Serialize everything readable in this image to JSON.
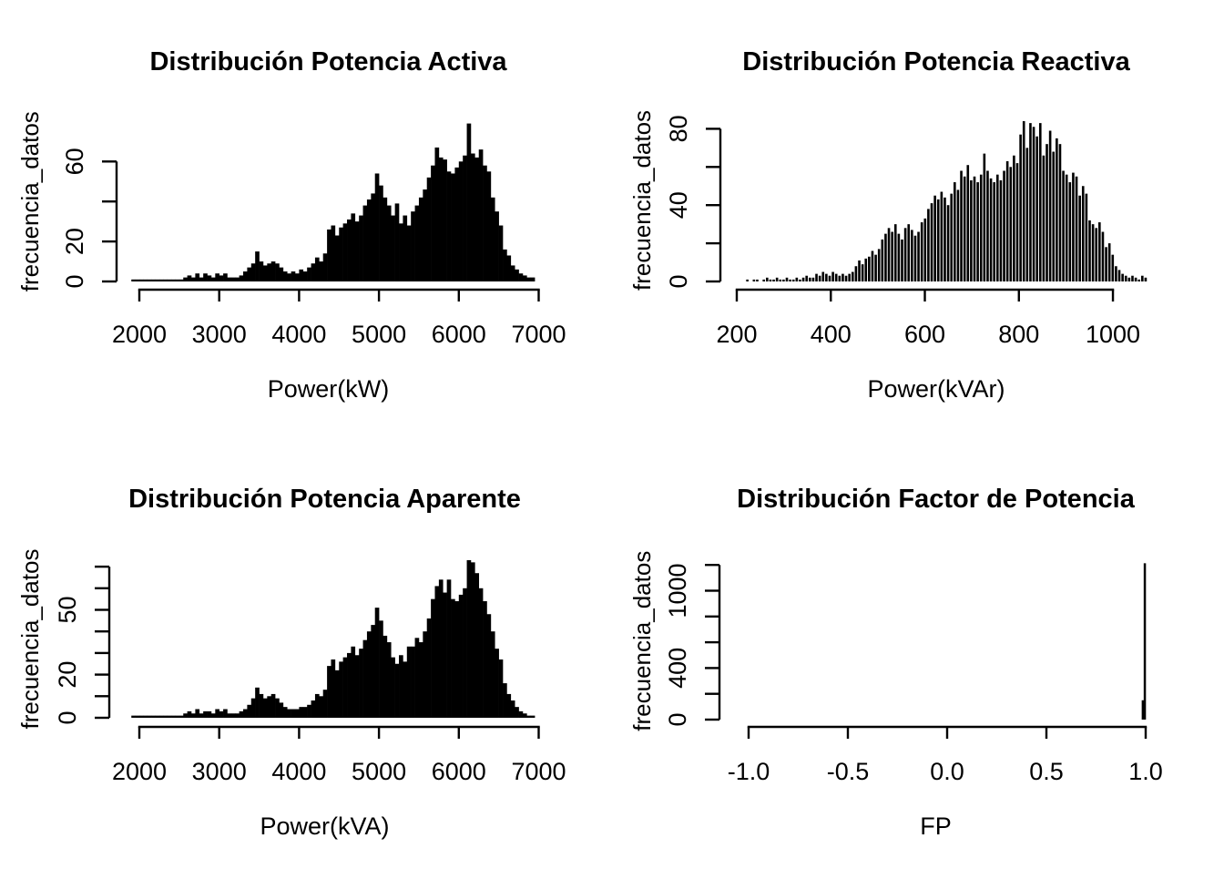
{
  "page": {
    "background_color": "#ffffff",
    "text_color": "#000000",
    "bar_color": "#000000"
  },
  "chart_data": {
    "note": "see charts[] — four base-R histograms in a 2x2 grid"
  },
  "charts": [
    {
      "id": "potencia-activa",
      "type": "bar",
      "title": "Distribución Potencia Activa",
      "xlabel": "Power(kW)",
      "ylabel": "frecuencia_datos",
      "xlim": [
        2000,
        7000
      ],
      "ylim": [
        0,
        80
      ],
      "grid": "off",
      "legend": "none",
      "x_ticks": [
        {
          "v": 2000,
          "label": "2000"
        },
        {
          "v": 3000,
          "label": "3000"
        },
        {
          "v": 4000,
          "label": "4000"
        },
        {
          "v": 5000,
          "label": "5000"
        },
        {
          "v": 6000,
          "label": "6000"
        },
        {
          "v": 7000,
          "label": "7000"
        }
      ],
      "y_ticks": [
        {
          "v": 0,
          "label": "0"
        },
        {
          "v": 20,
          "label": "20"
        },
        {
          "v": 40,
          "label": ""
        },
        {
          "v": 60,
          "label": "60"
        }
      ],
      "hist": {
        "start": 1900,
        "bin_width": 50,
        "counts": [
          1,
          1,
          1,
          1,
          1,
          1,
          1,
          1,
          1,
          1,
          1,
          1,
          1,
          2,
          3,
          2,
          4,
          2,
          4,
          3,
          2,
          4,
          3,
          4,
          2,
          2,
          2,
          3,
          5,
          7,
          9,
          15,
          10,
          8,
          9,
          10,
          9,
          7,
          5,
          4,
          5,
          4,
          6,
          5,
          7,
          9,
          12,
          10,
          14,
          26,
          28,
          23,
          27,
          29,
          31,
          34,
          30,
          33,
          38,
          41,
          44,
          54,
          48,
          42,
          38,
          33,
          39,
          29,
          33,
          28,
          35,
          38,
          42,
          46,
          52,
          58,
          67,
          62,
          61,
          55,
          54,
          57,
          60,
          63,
          79,
          64,
          62,
          66,
          58,
          55,
          42,
          35,
          28,
          16,
          13,
          8,
          6,
          4,
          3,
          2,
          2
        ]
      }
    },
    {
      "id": "potencia-reactiva",
      "type": "bar",
      "title": "Distribución Potencia Reactiva",
      "xlabel": "Power(kVAr)",
      "ylabel": "frecuencia_datos",
      "xlim": [
        200,
        1075
      ],
      "ylim": [
        0,
        85
      ],
      "grid": "off",
      "legend": "none",
      "x_ticks": [
        {
          "v": 200,
          "label": "200"
        },
        {
          "v": 400,
          "label": "400"
        },
        {
          "v": 600,
          "label": "600"
        },
        {
          "v": 800,
          "label": "800"
        },
        {
          "v": 1000,
          "label": "1000"
        }
      ],
      "y_ticks": [
        {
          "v": 0,
          "label": "0"
        },
        {
          "v": 20,
          "label": ""
        },
        {
          "v": 40,
          "label": "40"
        },
        {
          "v": 60,
          "label": ""
        },
        {
          "v": 80,
          "label": "80"
        }
      ],
      "hist": {
        "start": 220,
        "bin_width": 7,
        "counts": [
          1,
          0,
          1,
          1,
          0,
          1,
          2,
          1,
          1,
          2,
          1,
          1,
          2,
          1,
          1,
          2,
          1,
          2,
          3,
          2,
          2,
          4,
          3,
          5,
          4,
          3,
          5,
          4,
          3,
          4,
          3,
          4,
          5,
          8,
          11,
          9,
          12,
          13,
          16,
          14,
          17,
          22,
          25,
          28,
          26,
          30,
          25,
          22,
          28,
          30,
          27,
          24,
          26,
          31,
          33,
          38,
          41,
          45,
          43,
          47,
          44,
          40,
          46,
          52,
          48,
          58,
          55,
          61,
          53,
          55,
          52,
          56,
          67,
          58,
          54,
          52,
          56,
          53,
          58,
          63,
          60,
          66,
          62,
          77,
          84,
          70,
          83,
          81,
          76,
          83,
          66,
          72,
          79,
          68,
          75,
          72,
          58,
          56,
          52,
          57,
          55,
          45,
          50,
          46,
          32,
          30,
          28,
          31,
          26,
          18,
          20,
          14,
          8,
          6,
          4,
          3,
          2,
          3,
          2,
          1,
          3,
          2
        ]
      }
    },
    {
      "id": "potencia-aparente",
      "type": "bar",
      "title": "Distribución Potencia Aparente",
      "xlabel": "Power(kVA)",
      "ylabel": "frecuencia_datos",
      "xlim": [
        2000,
        7000
      ],
      "ylim": [
        0,
        73
      ],
      "grid": "off",
      "legend": "none",
      "x_ticks": [
        {
          "v": 2000,
          "label": "2000"
        },
        {
          "v": 3000,
          "label": "3000"
        },
        {
          "v": 4000,
          "label": "4000"
        },
        {
          "v": 5000,
          "label": "5000"
        },
        {
          "v": 6000,
          "label": "6000"
        },
        {
          "v": 7000,
          "label": "7000"
        }
      ],
      "y_ticks": [
        {
          "v": 0,
          "label": "0"
        },
        {
          "v": 10,
          "label": ""
        },
        {
          "v": 20,
          "label": "20"
        },
        {
          "v": 30,
          "label": ""
        },
        {
          "v": 40,
          "label": ""
        },
        {
          "v": 50,
          "label": "50"
        },
        {
          "v": 60,
          "label": ""
        },
        {
          "v": 70,
          "label": ""
        }
      ],
      "hist": {
        "start": 1900,
        "bin_width": 50,
        "counts": [
          1,
          1,
          1,
          1,
          1,
          1,
          1,
          1,
          1,
          1,
          1,
          1,
          1,
          2,
          3,
          2,
          4,
          2,
          3,
          3,
          2,
          4,
          3,
          4,
          2,
          2,
          2,
          3,
          4,
          6,
          9,
          14,
          11,
          9,
          10,
          11,
          9,
          7,
          5,
          4,
          4,
          4,
          5,
          5,
          6,
          8,
          11,
          10,
          13,
          24,
          27,
          22,
          26,
          28,
          30,
          33,
          29,
          32,
          36,
          40,
          43,
          51,
          45,
          38,
          35,
          28,
          25,
          29,
          26,
          33,
          33,
          37,
          35,
          40,
          46,
          55,
          61,
          64,
          58,
          64,
          55,
          54,
          57,
          60,
          73,
          72,
          67,
          60,
          54,
          48,
          40,
          32,
          27,
          16,
          11,
          8,
          5,
          3,
          2,
          1,
          1
        ]
      }
    },
    {
      "id": "factor-de-potencia",
      "type": "bar",
      "title": "Distribución Factor de Potencia",
      "xlabel": "FP",
      "ylabel": "frecuencia_datos",
      "xlim": [
        -1.0,
        1.0
      ],
      "ylim": [
        0,
        1220
      ],
      "grid": "off",
      "legend": "none",
      "x_ticks": [
        {
          "v": -1.0,
          "label": "-1.0"
        },
        {
          "v": -0.5,
          "label": "-0.5"
        },
        {
          "v": 0.0,
          "label": "0.0"
        },
        {
          "v": 0.5,
          "label": "0.5"
        },
        {
          "v": 1.0,
          "label": "1.0"
        }
      ],
      "y_ticks": [
        {
          "v": 0,
          "label": "0"
        },
        {
          "v": 200,
          "label": ""
        },
        {
          "v": 400,
          "label": "400"
        },
        {
          "v": 600,
          "label": ""
        },
        {
          "v": 800,
          "label": ""
        },
        {
          "v": 1000,
          "label": "1000"
        },
        {
          "v": 1200,
          "label": ""
        }
      ],
      "hist": {
        "start": 0.97,
        "bin_width": 0.01,
        "counts": [
          0,
          150,
          1213
        ]
      }
    }
  ]
}
